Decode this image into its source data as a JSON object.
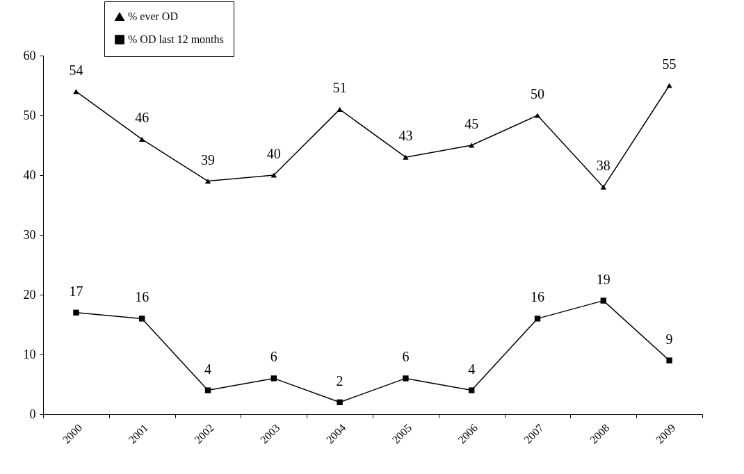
{
  "chart_data": {
    "type": "line",
    "categories": [
      "2000",
      "2001",
      "2002",
      "2003",
      "2004",
      "2005",
      "2006",
      "2007",
      "2008",
      "2009"
    ],
    "series": [
      {
        "name": "% ever OD",
        "color": "#000000",
        "marker": "triangle",
        "values": [
          54,
          46,
          39,
          40,
          51,
          43,
          45,
          50,
          38,
          55
        ]
      },
      {
        "name": "% OD last 12 months",
        "color": "#000000",
        "marker": "square",
        "values": [
          17,
          16,
          4,
          6,
          2,
          6,
          4,
          16,
          19,
          9
        ]
      }
    ],
    "ylim": [
      0,
      60
    ],
    "yticks": [
      0,
      10,
      20,
      30,
      40,
      50,
      60
    ],
    "grid": false,
    "legend": "top left",
    "data_labels": true,
    "line_style": "solid"
  }
}
